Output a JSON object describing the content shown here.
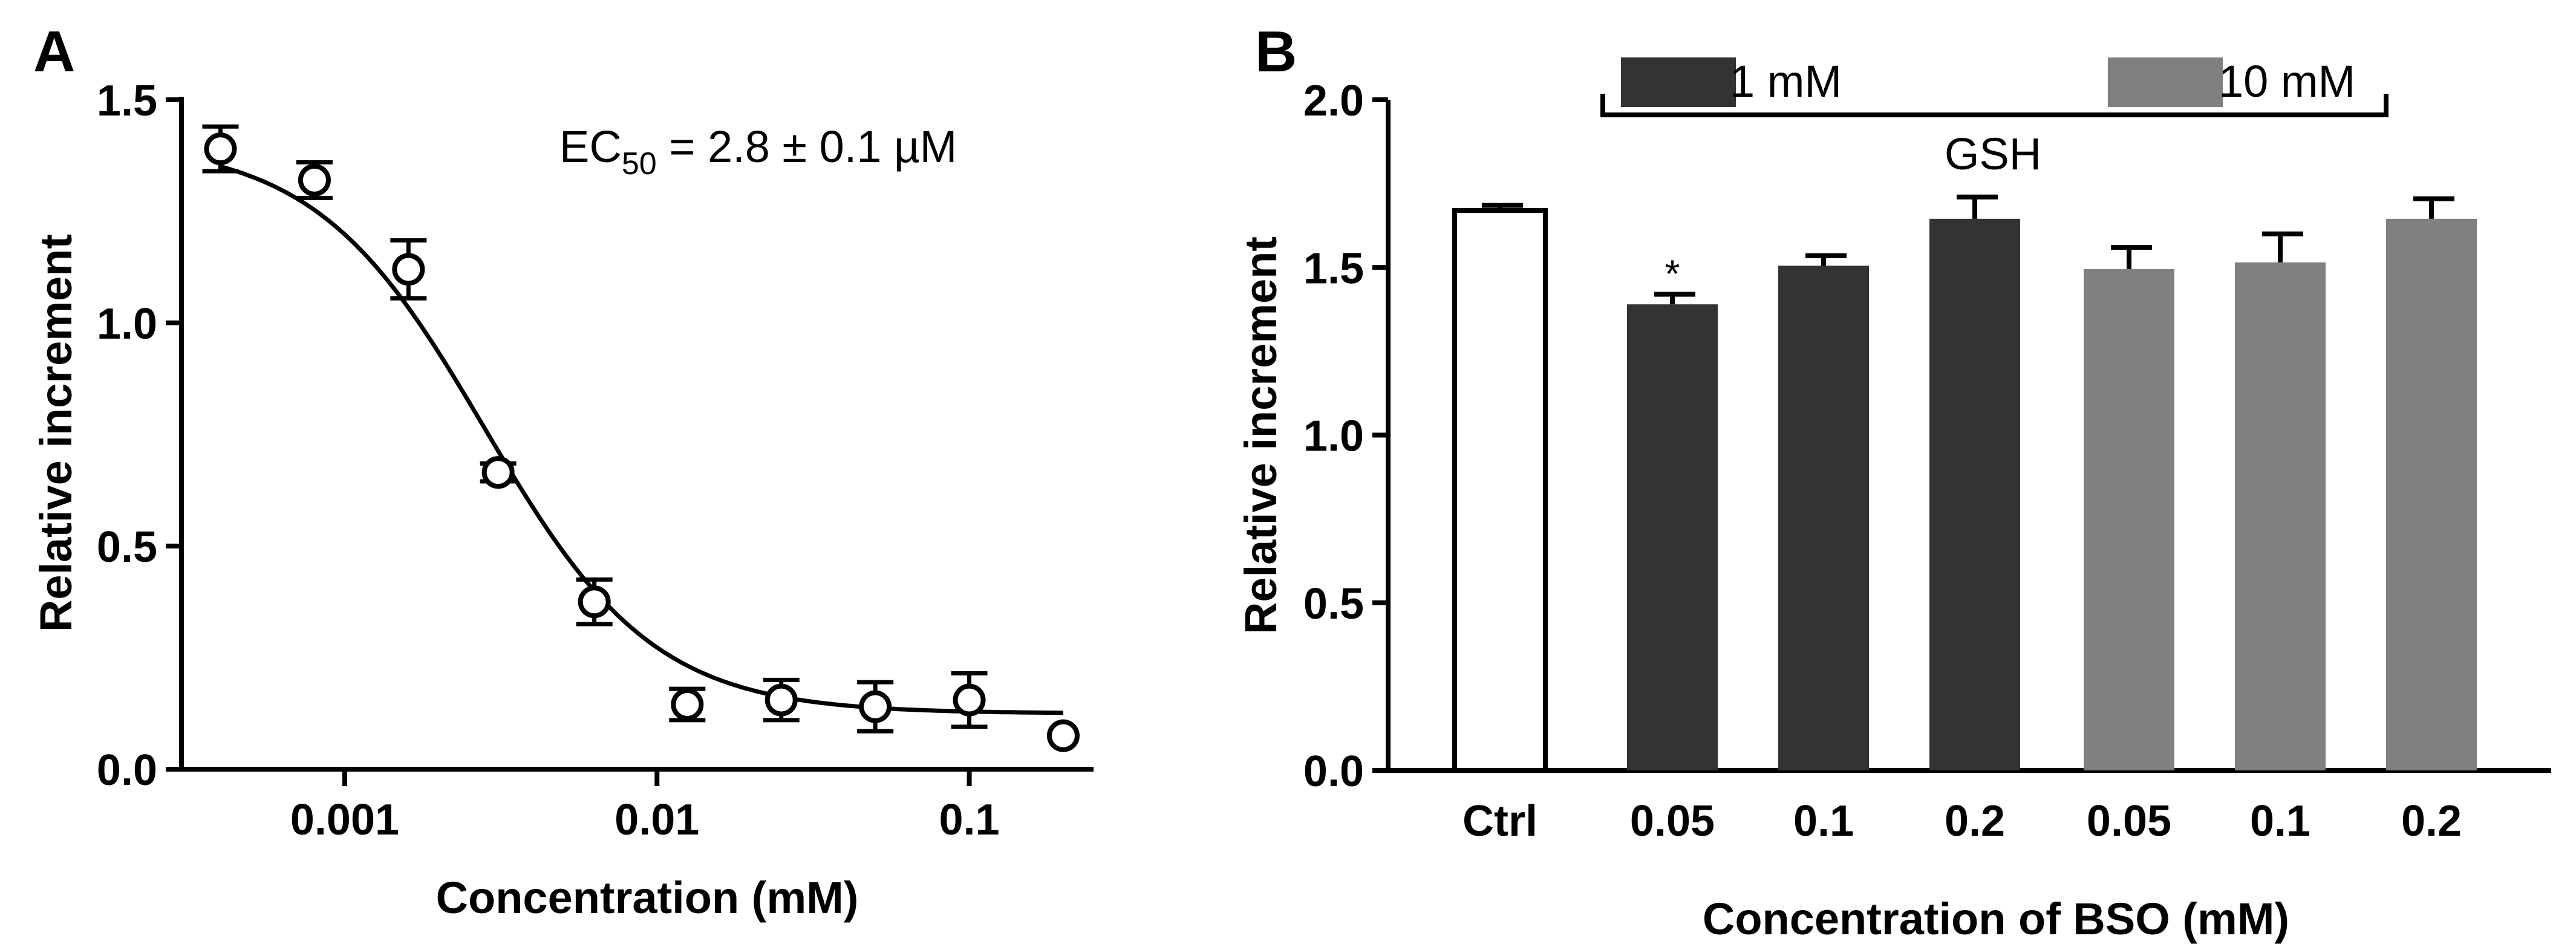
{
  "chart_data": [
    {
      "panel": "A",
      "type": "scatter",
      "xscale": "log",
      "xlabel": "Concentration (mM)",
      "ylabel": "Relative increment",
      "xlim": [
        0.0003,
        0.25
      ],
      "ylim": [
        0,
        1.5
      ],
      "x_ticks": [
        0.001,
        0.01,
        0.1
      ],
      "x_tick_labels": [
        "0.001",
        "0.01",
        "0.1"
      ],
      "y_ticks": [
        0.0,
        0.5,
        1.0,
        1.5
      ],
      "y_tick_labels": [
        "0.0",
        "0.5",
        "1.0",
        "1.5"
      ],
      "points": [
        {
          "x": 0.0004,
          "y": 1.39,
          "err": 0.05
        },
        {
          "x": 0.0008,
          "y": 1.32,
          "err": 0.04
        },
        {
          "x": 0.0016,
          "y": 1.12,
          "err": 0.065
        },
        {
          "x": 0.0031,
          "y": 0.665,
          "err": 0.02
        },
        {
          "x": 0.0063,
          "y": 0.375,
          "err": 0.05
        },
        {
          "x": 0.0125,
          "y": 0.145,
          "err": 0.035
        },
        {
          "x": 0.025,
          "y": 0.155,
          "err": 0.045
        },
        {
          "x": 0.05,
          "y": 0.14,
          "err": 0.055
        },
        {
          "x": 0.1,
          "y": 0.155,
          "err": 0.06
        },
        {
          "x": 0.2,
          "y": 0.075,
          "err": 0.0
        }
      ],
      "fit": {
        "model": "sigmoidal dose-response",
        "top": 1.405,
        "bottom": 0.125,
        "ec50_mM": 0.0028,
        "hill": 1.6
      },
      "annotation": {
        "prefix": "EC",
        "subscript": "50",
        "suffix": " = 2.8 ± 0.1 µM"
      }
    },
    {
      "panel": "B",
      "type": "bar",
      "xlabel": "Concentration of BSO (mM)",
      "ylabel": "Relative increment",
      "ylim": [
        0,
        2.0
      ],
      "y_ticks": [
        0.0,
        0.5,
        1.0,
        1.5,
        2.0
      ],
      "y_tick_labels": [
        "0.0",
        "0.5",
        "1.0",
        "1.5",
        "2.0"
      ],
      "categories": [
        "Ctrl",
        "0.05",
        "0.1",
        "0.2",
        "0.05",
        "0.1",
        "0.2"
      ],
      "values": [
        1.67,
        1.39,
        1.505,
        1.645,
        1.495,
        1.515,
        1.645
      ],
      "errors": [
        0.015,
        0.03,
        0.03,
        0.065,
        0.065,
        0.085,
        0.06
      ],
      "groups": [
        "ctrl",
        "1mM",
        "1mM",
        "1mM",
        "10mM",
        "10mM",
        "10mM"
      ],
      "significance": [
        null,
        "*",
        null,
        null,
        null,
        null,
        null
      ],
      "legend": [
        {
          "key": "1mM",
          "label": "1 mM",
          "color": "#333333"
        },
        {
          "key": "10mM",
          "label": "10 mM",
          "color": "#808080"
        }
      ],
      "bracket_label": "GSH",
      "ctrl_fill": "#ffffff"
    }
  ],
  "panel_labels": [
    "A",
    "B"
  ]
}
